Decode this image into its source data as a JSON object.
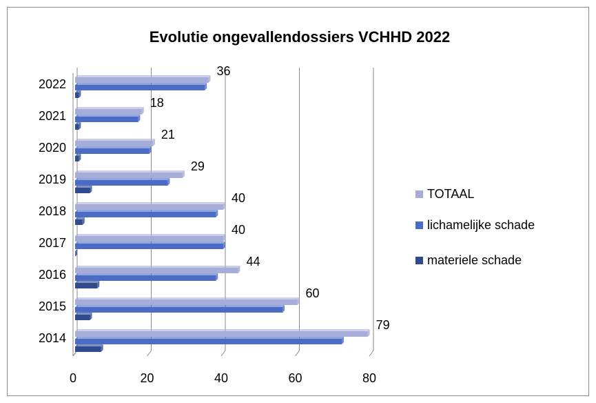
{
  "chart_data": {
    "type": "hbar",
    "title": "Evolutie ongevallendossiers  VCHHD 2022",
    "categories": [
      "2014",
      "2015",
      "2016",
      "2017",
      "2018",
      "2019",
      "2020",
      "2021",
      "2022"
    ],
    "series": [
      {
        "name": "TOTAAL",
        "color": "#a6add8",
        "values": [
          79,
          60,
          44,
          40,
          40,
          29,
          21,
          18,
          36
        ]
      },
      {
        "name": "lichamelijke schade",
        "color": "#4a6cc6",
        "values": [
          72,
          56,
          38,
          40,
          38,
          25,
          20,
          17,
          35
        ]
      },
      {
        "name": "materiele schade",
        "color": "#2f4b8e",
        "values": [
          7,
          4,
          6,
          0,
          2,
          4,
          1,
          1,
          1
        ]
      }
    ],
    "labeled_series": 0,
    "xlim": [
      0,
      80
    ],
    "xticks": [
      0,
      20,
      40,
      60,
      80
    ],
    "grid": true,
    "legend": "right"
  }
}
